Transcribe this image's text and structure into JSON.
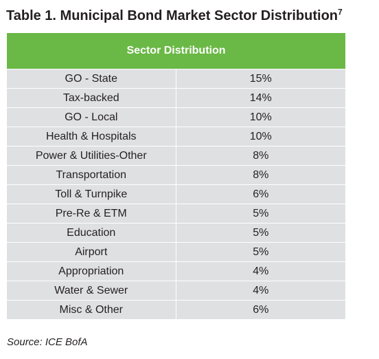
{
  "title": {
    "text": "Table 1. Municipal Bond Market Sector Distribution",
    "footnote": "7"
  },
  "table": {
    "header": "Sector Distribution",
    "header_color": "#6ab845",
    "row_color": "#dfe0e2",
    "rows": [
      {
        "sector": "GO - State",
        "pct": "15%"
      },
      {
        "sector": "Tax-backed",
        "pct": "14%"
      },
      {
        "sector": "GO - Local",
        "pct": "10%"
      },
      {
        "sector": "Health & Hospitals",
        "pct": "10%"
      },
      {
        "sector": "Power & Utilities-Other",
        "pct": "8%"
      },
      {
        "sector": "Transportation",
        "pct": "8%"
      },
      {
        "sector": "Toll & Turnpike",
        "pct": "6%"
      },
      {
        "sector": "Pre-Re & ETM",
        "pct": "5%"
      },
      {
        "sector": "Education",
        "pct": "5%"
      },
      {
        "sector": "Airport",
        "pct": "5%"
      },
      {
        "sector": "Appropriation",
        "pct": "4%"
      },
      {
        "sector": "Water & Sewer",
        "pct": "4%"
      },
      {
        "sector": "Misc & Other",
        "pct": "6%"
      }
    ]
  },
  "source": "Source: ICE BofA"
}
